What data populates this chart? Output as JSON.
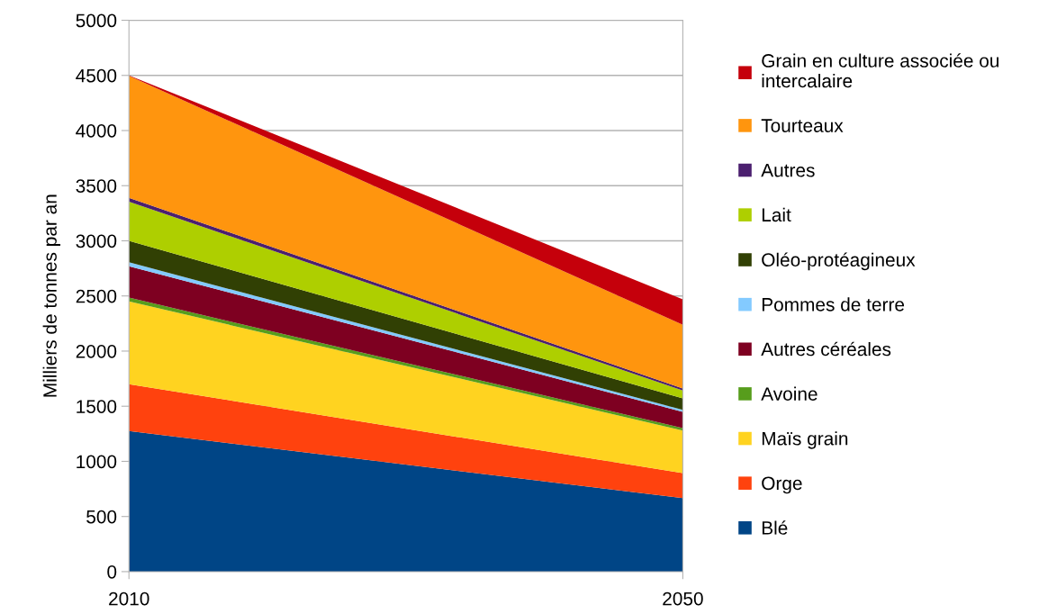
{
  "chart_data": {
    "type": "area",
    "stacked": true,
    "ylabel": "Milliers de tonnes par an",
    "x": [
      2010,
      2050
    ],
    "xlim": [
      2010,
      2050
    ],
    "xticks": [
      2010,
      2050
    ],
    "ylim": [
      0,
      5000
    ],
    "yticks": [
      0,
      500,
      1000,
      1500,
      2000,
      2500,
      3000,
      3500,
      4000,
      4500,
      5000
    ],
    "grid": "y",
    "legend": "right",
    "series": [
      {
        "name": "Blé",
        "color": "#004586",
        "values": [
          1275,
          667
        ]
      },
      {
        "name": "Orge",
        "color": "#ff420e",
        "values": [
          425,
          226
        ]
      },
      {
        "name": "Maïs grain",
        "color": "#ffd320",
        "values": [
          750,
          387
        ]
      },
      {
        "name": "Avoine",
        "color": "#579d1c",
        "values": [
          35,
          21
        ]
      },
      {
        "name": "Autres céréales",
        "color": "#7e0021",
        "values": [
          285,
          148
        ]
      },
      {
        "name": "Pommes de terre",
        "color": "#83caff",
        "values": [
          35,
          19
        ]
      },
      {
        "name": "Oléo-protéagineux",
        "color": "#314004",
        "values": [
          195,
          103
        ]
      },
      {
        "name": "Lait",
        "color": "#aecf00",
        "values": [
          355,
          71
        ]
      },
      {
        "name": "Autres",
        "color": "#4b1f6f",
        "values": [
          35,
          19
        ]
      },
      {
        "name": "Tourteaux",
        "color": "#ff950e",
        "values": [
          1105,
          578
        ]
      },
      {
        "name": "Grain en culture associée ou intercalaire",
        "color": "#c5000b",
        "values": [
          5,
          231
        ]
      }
    ]
  }
}
